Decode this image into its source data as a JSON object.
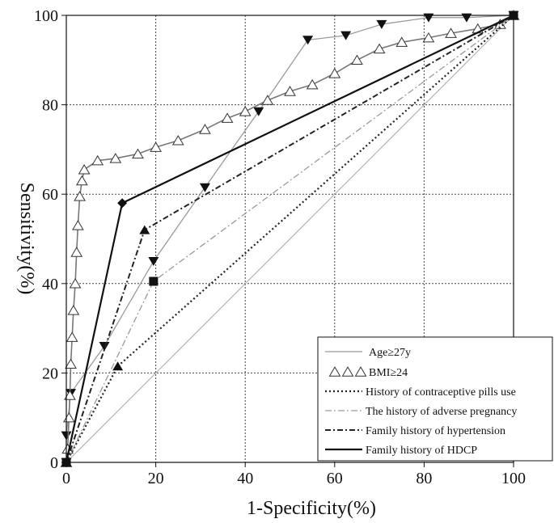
{
  "chart_data": {
    "type": "line",
    "xlabel": "1-Specificity(%)",
    "ylabel": "Sensitivity(%)",
    "xlim": [
      0,
      100
    ],
    "ylim": [
      0,
      100
    ],
    "x_ticks": [
      0,
      20,
      40,
      60,
      80,
      100
    ],
    "y_ticks": [
      0,
      20,
      40,
      60,
      80,
      100
    ],
    "x_tick_labels": [
      "0",
      "20",
      "40",
      "60",
      "80",
      "100"
    ],
    "y_tick_labels": [
      "0",
      "20",
      "40",
      "60",
      "80",
      "100"
    ],
    "grid": "dotted",
    "legend_position": "bottom-right",
    "series": [
      {
        "name": "Age≥27y",
        "style": "solid-thin-gray",
        "marker": "triangle-down",
        "x": [
          0,
          0,
          1,
          8.5,
          19.5,
          31,
          43,
          54,
          62.5,
          70.5,
          81,
          89.5,
          100
        ],
        "y": [
          0,
          6,
          15.5,
          26,
          45,
          61.5,
          78.5,
          94.5,
          95.5,
          98,
          99.5,
          99.5,
          100
        ]
      },
      {
        "name": "BMI≥24",
        "style": "solid-gray",
        "marker": "triangle-open",
        "x": [
          0,
          0.3,
          0.6,
          0.8,
          1,
          1.3,
          1.6,
          2,
          2.3,
          2.6,
          3,
          3.5,
          4,
          7,
          11,
          16,
          20,
          25,
          31,
          36,
          40,
          45,
          50,
          55,
          60,
          65,
          70,
          75,
          81,
          86,
          92,
          97,
          100
        ],
        "y": [
          0,
          3,
          10,
          15,
          22,
          28,
          34,
          40,
          47,
          53,
          59.5,
          63,
          65.5,
          67.5,
          68,
          69,
          70.5,
          72,
          74.5,
          77,
          78.5,
          81,
          83,
          84.5,
          87,
          90,
          92.5,
          94,
          95,
          96,
          97,
          98,
          100
        ]
      },
      {
        "name": "History of contraceptive pills use",
        "style": "dotted",
        "marker": "triangle-up",
        "x": [
          0,
          11.5,
          100
        ],
        "y": [
          0,
          21.5,
          100
        ]
      },
      {
        "name": "The history of adverse pregnancy",
        "style": "dashdot-light",
        "marker": "square",
        "x": [
          0,
          19.5,
          100
        ],
        "y": [
          0,
          40.5,
          100
        ]
      },
      {
        "name": "Family history of hypertension",
        "style": "dashdot",
        "marker": "triangle-up",
        "x": [
          0,
          17.5,
          100
        ],
        "y": [
          0,
          52,
          100
        ]
      },
      {
        "name": "Family history of HDCP",
        "style": "solid-black",
        "marker": "diamond",
        "x": [
          0,
          12.5,
          100
        ],
        "y": [
          0,
          58,
          100
        ]
      }
    ],
    "reference_line": {
      "x": [
        0,
        100
      ],
      "y": [
        0,
        100
      ]
    }
  }
}
